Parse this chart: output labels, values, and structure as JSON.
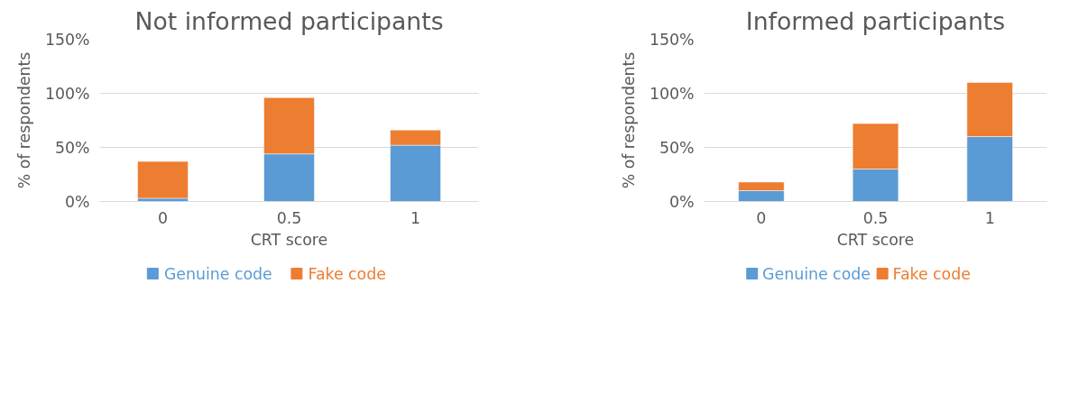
{
  "chart_data": [
    {
      "type": "bar",
      "stacked": true,
      "title": "Not informed participants",
      "xlabel": "CRT score",
      "ylabel": "% of respondents",
      "categories": [
        "0",
        "0.5",
        "1"
      ],
      "series": [
        {
          "name": "Genuine code",
          "color": "#5b9bd5",
          "values": [
            3,
            44,
            52
          ]
        },
        {
          "name": "Fake code",
          "color": "#ed7d31",
          "values": [
            34,
            52,
            14
          ]
        }
      ],
      "ylim": [
        0,
        150
      ],
      "yticks": [
        {
          "value": 0,
          "label": "0%"
        },
        {
          "value": 50,
          "label": "50%"
        },
        {
          "value": 100,
          "label": "100%"
        },
        {
          "value": 150,
          "label": "150%"
        }
      ],
      "grid": "y",
      "legend": "bottom"
    },
    {
      "type": "bar",
      "stacked": true,
      "title": "Informed participants",
      "xlabel": "CRT score",
      "ylabel": "% of respondents",
      "categories": [
        "0",
        "0.5",
        "1"
      ],
      "series": [
        {
          "name": "Genuine code",
          "color": "#5b9bd5",
          "values": [
            10,
            30,
            60
          ]
        },
        {
          "name": "Fake code",
          "color": "#ed7d31",
          "values": [
            8,
            42,
            50
          ]
        }
      ],
      "ylim": [
        0,
        150
      ],
      "yticks": [
        {
          "value": 0,
          "label": "0%"
        },
        {
          "value": 50,
          "label": "50%"
        },
        {
          "value": 100,
          "label": "100%"
        },
        {
          "value": 150,
          "label": "150%"
        }
      ],
      "grid": "y",
      "legend": "bottom"
    }
  ]
}
